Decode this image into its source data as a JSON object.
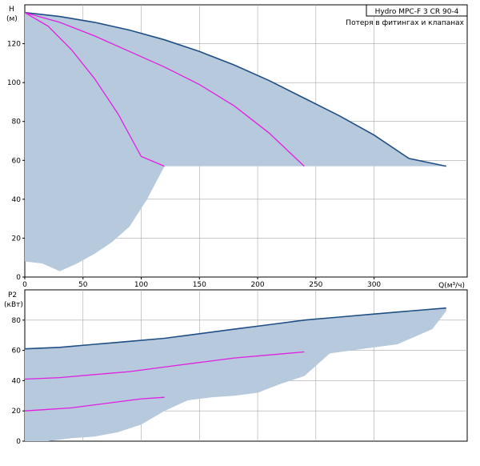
{
  "chart_data": [
    {
      "type": "area",
      "title": "Hydro  MPC-F  3  CR  90-4",
      "subtitle": "Потеря в фитингах и клапанах",
      "ylabel": "H",
      "yunit": "(м)",
      "xlabel": "Q(м³/ч)",
      "xlim": [
        0,
        380
      ],
      "ylim": [
        0,
        140
      ],
      "xticks": [
        "0",
        "50",
        "100",
        "150",
        "200",
        "250",
        "300"
      ],
      "xtick_values": [
        0,
        50,
        100,
        150,
        200,
        250,
        300
      ],
      "yticks": [
        "0",
        "20",
        "40",
        "60",
        "80",
        "100",
        "120"
      ],
      "ytick_values": [
        0,
        20,
        40,
        60,
        80,
        100,
        120
      ],
      "grid": true,
      "colors": {
        "max_curve": "#1f4e85",
        "pump_curves": "#e020e0",
        "area_fill": "#b7c9dc"
      },
      "series": [
        {
          "x": [
            0,
            30,
            60,
            90,
            120,
            150,
            180,
            210,
            240,
            270,
            300,
            330,
            362
          ],
          "y": [
            136,
            134,
            131,
            127,
            122,
            116,
            109,
            101,
            92,
            83,
            73,
            61,
            57
          ]
        },
        {
          "x": [
            0,
            30,
            60,
            90,
            120,
            150,
            180,
            210,
            240
          ],
          "y": [
            136,
            131,
            124,
            116,
            108,
            99,
            88,
            74,
            57
          ]
        },
        {
          "x": [
            0,
            20,
            40,
            60,
            80,
            100,
            120
          ],
          "y": [
            136,
            129,
            117,
            102,
            84,
            62,
            57
          ]
        }
      ],
      "area_lower_boundary": {
        "x": [
          0,
          15,
          30,
          45,
          60,
          75,
          90,
          105,
          120,
          300,
          362
        ],
        "y": [
          8,
          7,
          3,
          7,
          12,
          18,
          26,
          40,
          57,
          57,
          57
        ]
      }
    },
    {
      "type": "area",
      "ylabel": "P2",
      "yunit": "(кВт)",
      "xlim": [
        0,
        380
      ],
      "ylim": [
        0,
        100
      ],
      "yticks": [
        "0",
        "20",
        "40",
        "60",
        "80"
      ],
      "ytick_values": [
        0,
        20,
        40,
        60,
        80
      ],
      "grid": true,
      "colors": {
        "max_curve": "#1f4e85",
        "pump_curves": "#e020e0",
        "area_fill": "#b7c9dc"
      },
      "series": [
        {
          "x": [
            0,
            30,
            60,
            90,
            120,
            150,
            180,
            210,
            240,
            270,
            300,
            330,
            362
          ],
          "y": [
            61,
            62,
            64,
            66,
            68,
            71,
            74,
            77,
            80,
            82,
            84,
            86,
            88
          ]
        },
        {
          "x": [
            0,
            30,
            60,
            90,
            120,
            150,
            180,
            210,
            240
          ],
          "y": [
            41,
            42,
            44,
            46,
            49,
            52,
            55,
            57,
            59
          ]
        },
        {
          "x": [
            0,
            20,
            40,
            60,
            80,
            100,
            120
          ],
          "y": [
            20,
            21,
            22,
            24,
            26,
            28,
            29
          ]
        }
      ],
      "area_lower_boundary": {
        "x": [
          0,
          20,
          40,
          60,
          80,
          100,
          120,
          140,
          160,
          180,
          200,
          220,
          240,
          262,
          290,
          320,
          350,
          362
        ],
        "y": [
          0,
          0,
          2,
          3,
          6,
          11,
          20,
          27,
          29,
          30,
          32,
          38,
          43,
          58,
          61,
          64,
          74,
          86
        ]
      }
    }
  ]
}
